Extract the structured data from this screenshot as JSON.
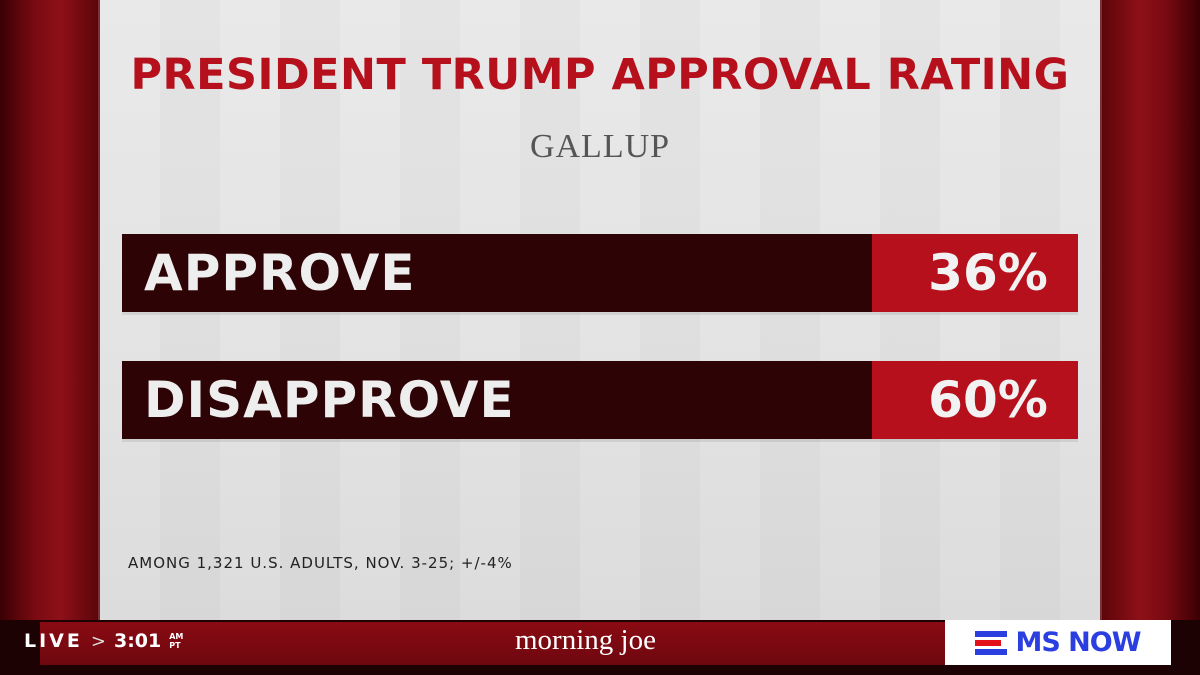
{
  "graphic": {
    "title": "PRESIDENT TRUMP APPROVAL RATING",
    "source": "GALLUP",
    "rows": [
      {
        "label": "APPROVE",
        "value": "36%"
      },
      {
        "label": "DISAPPROVE",
        "value": "60%"
      }
    ],
    "footnote": "AMONG 1,321 U.S. ADULTS, NOV. 3-25; +/-4%"
  },
  "ticker": {
    "live": "LIVE",
    "separator": ">",
    "time": "3:01",
    "am": "AM",
    "tz": "PT",
    "show": "morning joe",
    "network": "MS NOW"
  },
  "colors": {
    "accent_red": "#b5101c",
    "dark_bar": "#2e0306",
    "network_blue": "#2b3fe0"
  }
}
